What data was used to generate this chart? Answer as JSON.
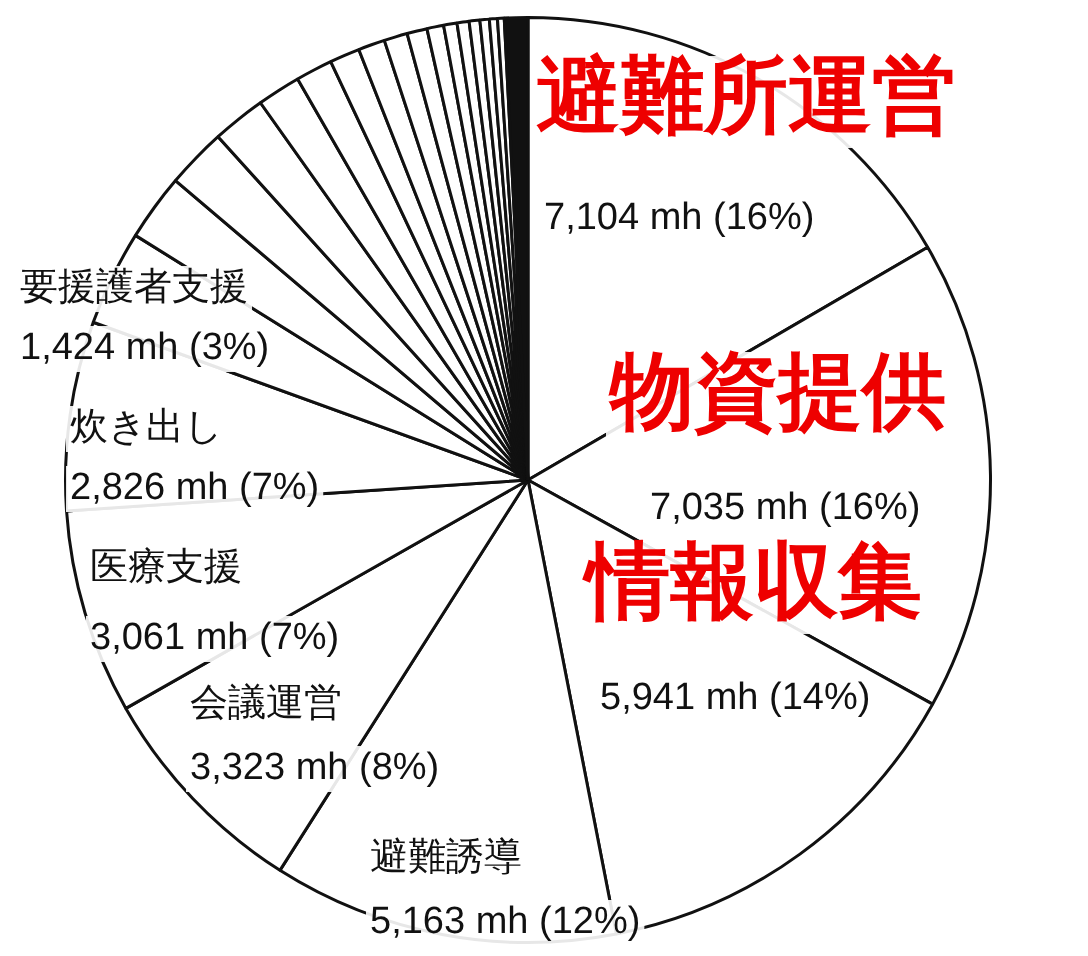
{
  "chart_data": {
    "type": "pie",
    "categories": [
      "避難所運営",
      "物資提供",
      "情報収集",
      "避難誘導",
      "会議運営",
      "医療支援",
      "炊き出し",
      "要援護者支援",
      null,
      null,
      null,
      null,
      null,
      null,
      null,
      null,
      null,
      null,
      null,
      null,
      null,
      null,
      null,
      null,
      null
    ],
    "values": [
      7104,
      7035,
      5941,
      5163,
      3323,
      3061,
      2826,
      1424,
      1000,
      900,
      800,
      650,
      550,
      450,
      400,
      350,
      300,
      250,
      200,
      180,
      160,
      140,
      120,
      100,
      350
    ],
    "value_labels": [
      "7,104 mh (16%)",
      "7,035 mh (16%)",
      "5,941 mh (14%)",
      "5,163 mh (12%)",
      "3,323 mh (8%)",
      "3,061 mh (7%)",
      "2,826 mh (7%)",
      "1,424 mh (3%)",
      null,
      null,
      null,
      null,
      null,
      null,
      null,
      null,
      null,
      null,
      null,
      null,
      null,
      null,
      null,
      null,
      null
    ],
    "colors": [
      "#ffffff",
      "#ffffff",
      "#ffffff",
      "#ffffff",
      "#ffffff",
      "#ffffff",
      "#ffffff",
      "#ffffff",
      "#ffffff",
      "#ffffff",
      "#ffffff",
      "#ffffff",
      "#ffffff",
      "#ffffff",
      "#ffffff",
      "#ffffff",
      "#ffffff",
      "#ffffff",
      "#ffffff",
      "#ffffff",
      "#ffffff",
      "#ffffff",
      "#ffffff",
      "#ffffff",
      "#111111"
    ],
    "legend": false
  }
}
